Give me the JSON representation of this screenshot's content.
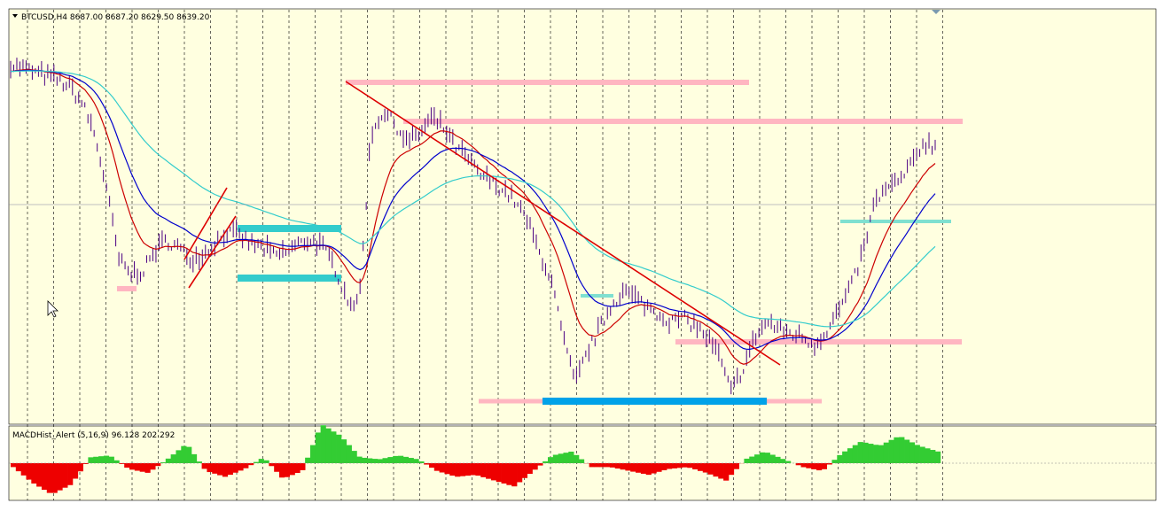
{
  "window": {
    "header_label": "BTCUSD,H4 8687.00 8687.20 8629.50 8639.20",
    "indicator_label": "MACDHist_Alert (5,16,9) 96.128 202.292"
  },
  "colors": {
    "background": "#ffffe0",
    "price_bars": "#4b0082",
    "ma_fast": "#cc0000",
    "ma_mid": "#0000cc",
    "ma_slow": "#33cccc",
    "zone_pink": "#ffb6c1",
    "zone_cyan": "#33cccc",
    "zone_blue": "#00a2e8",
    "trend_line": "#dd0000",
    "macd_positive": "#33cc33",
    "macd_negative": "#ee0000"
  },
  "chart_data": {
    "type": "line",
    "symbol": "BTCUSD",
    "timeframe": "H4",
    "last_bar": {
      "open": 8687.0,
      "high": 8687.2,
      "low": 8629.5,
      "close": 8639.2
    },
    "price_series_shape": [
      0.9,
      0.89,
      0.88,
      0.87,
      0.86,
      0.84,
      0.8,
      0.72,
      0.58,
      0.4,
      0.36,
      0.37,
      0.42,
      0.45,
      0.43,
      0.4,
      0.41,
      0.44,
      0.47,
      0.46,
      0.44,
      0.43,
      0.41,
      0.42,
      0.44,
      0.45,
      0.43,
      0.38,
      0.3,
      0.28,
      0.72,
      0.78,
      0.75,
      0.7,
      0.72,
      0.76,
      0.74,
      0.69,
      0.66,
      0.62,
      0.6,
      0.58,
      0.55,
      0.5,
      0.42,
      0.35,
      0.2,
      0.08,
      0.16,
      0.22,
      0.28,
      0.32,
      0.3,
      0.28,
      0.26,
      0.24,
      0.25,
      0.23,
      0.2,
      0.15,
      0.06,
      0.12,
      0.2,
      0.24,
      0.22,
      0.21,
      0.2,
      0.18,
      0.22,
      0.27,
      0.33,
      0.42,
      0.55,
      0.58,
      0.6,
      0.64,
      0.7,
      0.69
    ],
    "moving_averages": [
      {
        "name": "ma_fast",
        "color": "#cc0000"
      },
      {
        "name": "ma_mid",
        "color": "#0000cc"
      },
      {
        "name": "ma_slow",
        "color": "#33cccc"
      }
    ],
    "indicator": {
      "name": "MACDHist_Alert",
      "params": [
        5,
        16,
        9
      ],
      "values": [
        96.128,
        202.292
      ],
      "histogram_shape": [
        -0.2,
        -1.0,
        -1.6,
        -1.1,
        0.3,
        0.4,
        -0.3,
        -0.5,
        0.2,
        1.0,
        -0.4,
        -0.7,
        -0.3,
        0.3,
        -0.8,
        -0.4,
        2.0,
        1.4,
        0.3,
        0.2,
        0.4,
        0.2,
        -0.4,
        -0.7,
        -0.6,
        -0.9,
        -1.2,
        -0.4,
        0.4,
        0.6,
        -0.2,
        -0.2,
        -0.4,
        -0.6,
        -0.3,
        -0.2,
        -0.5,
        -0.9,
        0.2,
        0.6,
        0.2,
        -0.2,
        -0.4,
        0.5,
        1.1,
        0.9,
        1.4,
        0.9,
        0.6
      ]
    },
    "grid": "vertical-dashed",
    "legend": "top-left"
  }
}
